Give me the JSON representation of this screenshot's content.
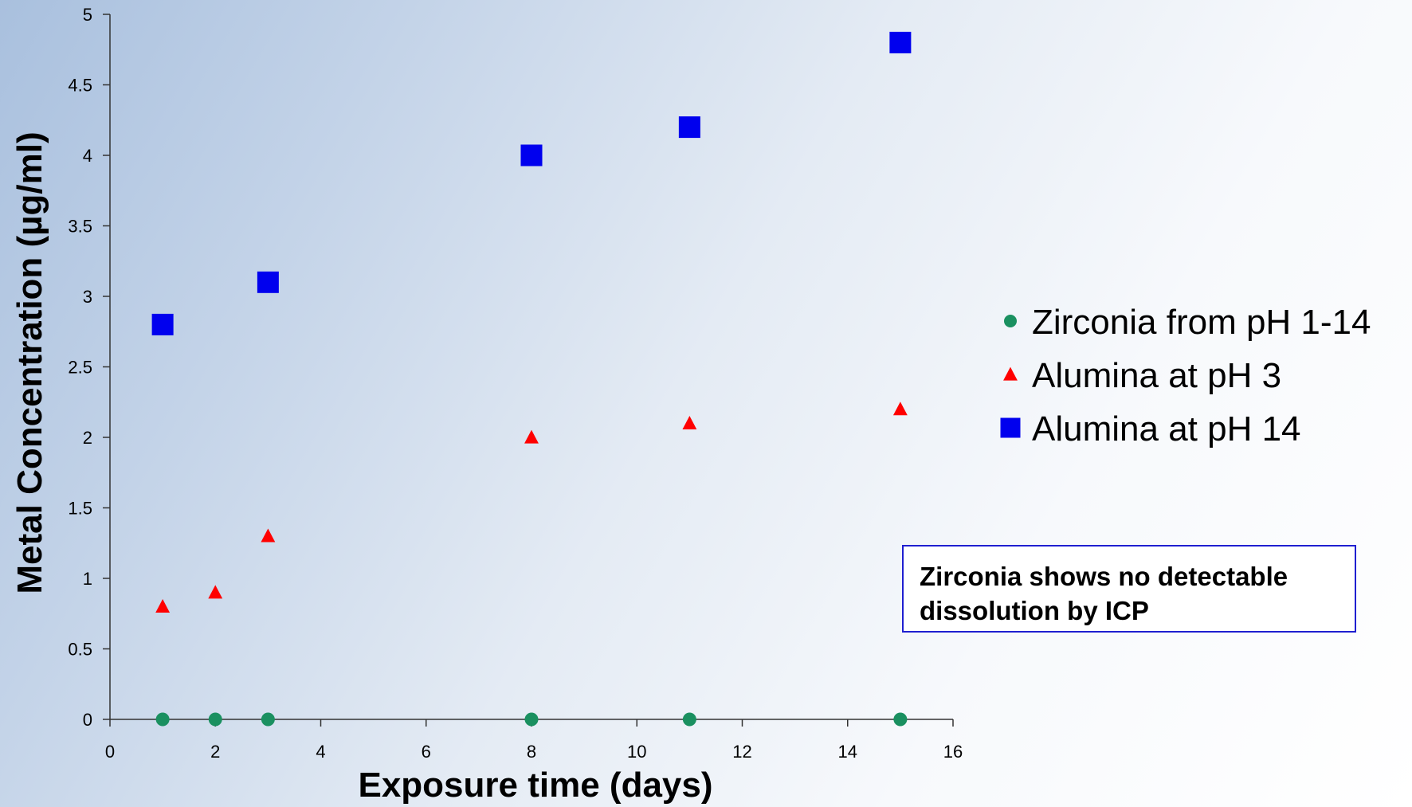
{
  "chart_data": {
    "type": "scatter",
    "xlabel": "Exposure time (days)",
    "ylabel": "Metal Concentration (µg/ml)",
    "xlim": [
      0,
      16
    ],
    "ylim": [
      0,
      5
    ],
    "xticks": [
      0,
      2,
      4,
      6,
      8,
      10,
      12,
      14,
      16
    ],
    "yticks": [
      0,
      0.5,
      1,
      1.5,
      2,
      2.5,
      3,
      3.5,
      4,
      4.5,
      5
    ],
    "grid": false,
    "legend_position": "right",
    "series": [
      {
        "name": "Zirconia from pH 1-14",
        "marker": "circle",
        "color": "#1a9060",
        "x": [
          1,
          2,
          3,
          8,
          11,
          15
        ],
        "y": [
          0,
          0,
          0,
          0,
          0,
          0
        ]
      },
      {
        "name": "Alumina at pH 3",
        "marker": "triangle",
        "color": "#ff0000",
        "x": [
          1,
          2,
          3,
          8,
          11,
          15
        ],
        "y": [
          0.8,
          0.9,
          1.3,
          2.0,
          2.1,
          2.2
        ]
      },
      {
        "name": "Alumina at pH 14",
        "marker": "square",
        "color": "#0000ee",
        "x": [
          1,
          3,
          8,
          11,
          15
        ],
        "y": [
          2.8,
          3.1,
          4.0,
          4.2,
          4.8
        ]
      }
    ],
    "annotation": {
      "line1": "Zirconia shows no detectable",
      "line2": "dissolution by ICP"
    }
  }
}
